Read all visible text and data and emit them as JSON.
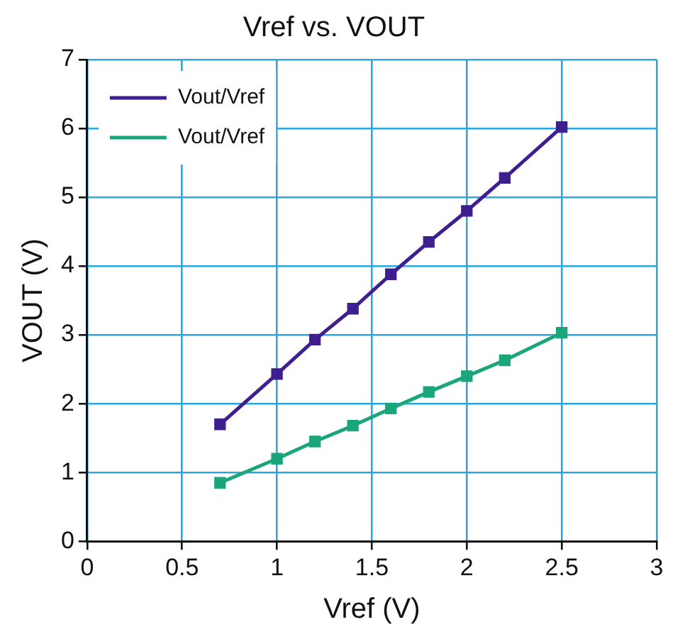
{
  "chart_data": {
    "type": "line",
    "title": "Vref vs. VOUT",
    "xlabel": "Vref (V)",
    "ylabel": "VOUT (V)",
    "x": [
      0.7,
      1.0,
      1.2,
      1.4,
      1.6,
      1.8,
      2.0,
      2.2,
      2.5
    ],
    "series": [
      {
        "name": "Vout/Vref",
        "color": "#3f1f8f",
        "values": [
          1.7,
          2.43,
          2.93,
          3.38,
          3.88,
          4.35,
          4.8,
          5.28,
          6.02
        ]
      },
      {
        "name": "Vout/Vref",
        "color": "#1aa67a",
        "values": [
          0.85,
          1.2,
          1.45,
          1.68,
          1.93,
          2.17,
          2.4,
          2.63,
          3.03
        ]
      }
    ],
    "xlim": [
      0,
      3
    ],
    "xticks": [
      0,
      0.5,
      1,
      1.5,
      2,
      2.5,
      3
    ],
    "ylim": [
      0,
      7
    ],
    "yticks": [
      0,
      1,
      2,
      3,
      4,
      5,
      6,
      7
    ],
    "grid": true,
    "legend": "top left",
    "marker": "square",
    "line_style": "solid"
  }
}
